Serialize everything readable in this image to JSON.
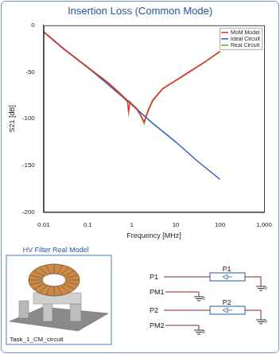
{
  "chart_data": {
    "type": "line",
    "title": "Insertion Loss (Common Mode)",
    "x_label": "Frequency [MHz]",
    "y_label": "S21 [dB]",
    "log": "x",
    "grid": false,
    "legend": "upper right",
    "xlim": [
      0.01,
      1000
    ],
    "xticks": [
      0.01,
      0.1,
      1,
      10,
      100,
      {
        "value": 1000,
        "label": "1,000"
      }
    ],
    "ylim": [
      -200,
      0
    ],
    "yticks": [
      -200,
      -150,
      -100,
      -50,
      0
    ],
    "series": [
      {
        "name": "MoM Model",
        "color": "#e8312a",
        "x": [
          0.01,
          0.03,
          0.1,
          0.3,
          0.6,
          0.8,
          0.85,
          0.9,
          1.0,
          1.3,
          1.6,
          1.8,
          1.9,
          2.1,
          2.5,
          3,
          5,
          10,
          20,
          50,
          100
        ],
        "values": [
          -7,
          -26,
          -45,
          -62,
          -75,
          -82,
          -93,
          -82,
          -85,
          -90,
          -97,
          -102,
          -104,
          -97,
          -88,
          -80,
          -68,
          -59,
          -50,
          -38,
          -28
        ]
      },
      {
        "name": "Ideal Circuit",
        "color": "#2f5fbf",
        "x": [
          0.01,
          0.03,
          0.1,
          0.3,
          1,
          3,
          10,
          30,
          100
        ],
        "values": [
          -7,
          -26,
          -45,
          -64,
          -85,
          -105,
          -125,
          -145,
          -165
        ]
      },
      {
        "name": "Real Circuit",
        "color": "#5cb531",
        "x": [
          0.01,
          0.03,
          0.1,
          0.3,
          0.6,
          0.8,
          1.0,
          1.3,
          1.6,
          1.8,
          1.9,
          2.1,
          2.5,
          3,
          5,
          10,
          20,
          50,
          100
        ],
        "values": [
          -7,
          -26,
          -45,
          -62,
          -75,
          -80,
          -84,
          -89,
          -96,
          -101,
          -105,
          -98,
          -89,
          -81,
          -68,
          -59,
          -50,
          -38,
          -28
        ]
      }
    ]
  },
  "diagram": {
    "model_title": "HV Filter Real Model",
    "model_caption": "Task_1_CM_circuit",
    "terminals": [
      "P1",
      "PM1",
      "P2",
      "PM2"
    ],
    "ports": [
      "P1",
      "P2"
    ]
  }
}
